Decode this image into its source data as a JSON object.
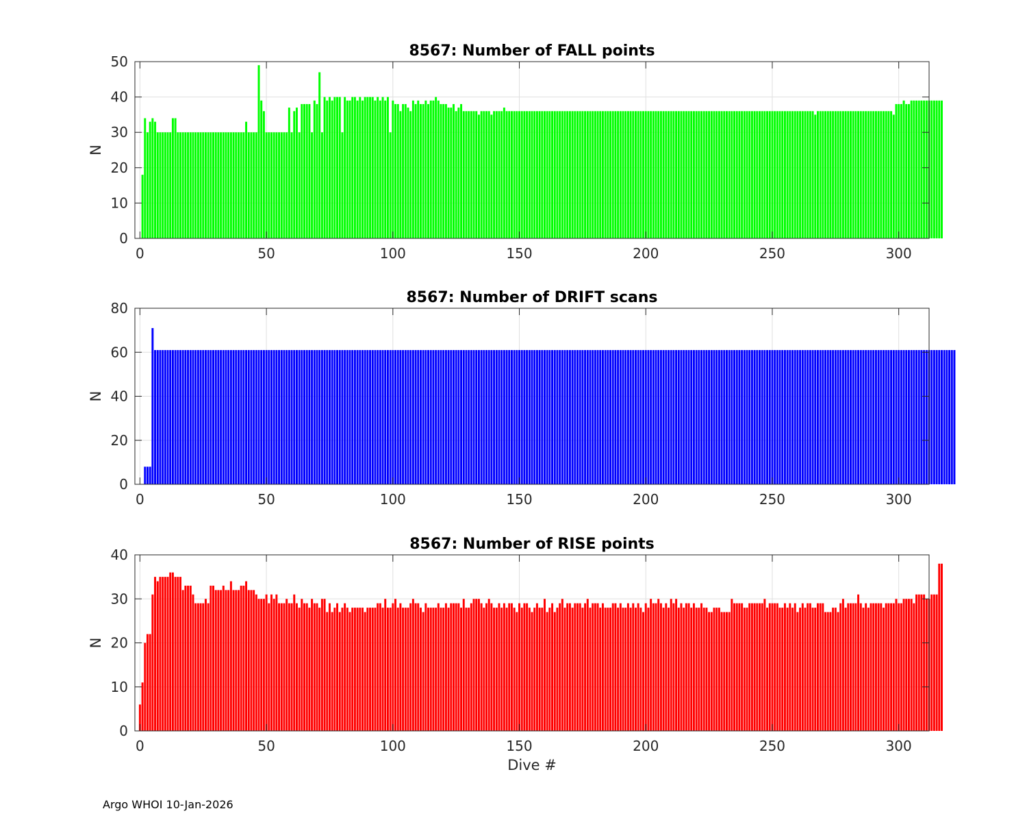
{
  "footer": {
    "note": "Argo WHOI 10-Jan-2026"
  },
  "chart_data": [
    {
      "type": "bar",
      "title": "8567: Number of FALL points",
      "xlabel": "",
      "ylabel": "N",
      "xlim": [
        -2,
        312
      ],
      "ylim": [
        0,
        50
      ],
      "xticks": [
        0,
        50,
        100,
        150,
        200,
        250,
        300
      ],
      "yticks": [
        0,
        10,
        20,
        30,
        40,
        50
      ],
      "grid": true,
      "color": "#00ff00",
      "x_start": 1,
      "values": [
        18,
        34,
        30,
        33,
        34,
        33,
        30,
        30,
        30,
        30,
        30,
        30,
        34,
        34,
        30,
        30,
        30,
        30,
        30,
        30,
        30,
        30,
        30,
        30,
        30,
        30,
        30,
        30,
        30,
        30,
        30,
        30,
        30,
        30,
        30,
        30,
        30,
        30,
        30,
        30,
        30,
        33,
        30,
        30,
        30,
        30,
        49,
        39,
        36,
        30,
        30,
        30,
        30,
        30,
        30,
        30,
        30,
        30,
        37,
        30,
        36,
        37,
        30,
        38,
        38,
        38,
        38,
        30,
        39,
        38,
        47,
        30,
        40,
        39,
        40,
        39,
        40,
        40,
        40,
        30,
        40,
        39,
        39,
        40,
        40,
        39,
        40,
        39,
        40,
        40,
        40,
        40,
        39,
        40,
        39,
        40,
        39,
        40,
        30,
        39,
        38,
        38,
        36,
        38,
        38,
        37,
        36,
        39,
        38,
        39,
        38,
        38,
        39,
        38,
        39,
        39,
        40,
        39,
        38,
        38,
        38,
        37,
        37,
        38,
        36,
        37,
        38,
        36,
        36,
        36,
        36,
        36,
        36,
        35,
        36,
        36,
        36,
        36,
        35,
        36,
        36,
        36,
        36,
        37,
        36,
        36,
        36,
        36,
        36,
        36,
        36,
        36,
        36,
        36,
        36,
        36,
        36,
        36,
        36,
        36,
        36,
        36,
        36,
        36,
        36,
        36,
        36,
        36,
        36,
        36,
        36,
        36,
        36,
        36,
        36,
        36,
        36,
        36,
        36,
        36,
        36,
        36,
        36,
        36,
        36,
        36,
        36,
        36,
        36,
        36,
        36,
        36,
        36,
        36,
        36,
        36,
        36,
        36,
        36,
        36,
        36,
        36,
        36,
        36,
        36,
        36,
        36,
        36,
        36,
        36,
        36,
        36,
        36,
        36,
        36,
        36,
        36,
        36,
        36,
        36,
        36,
        36,
        36,
        36,
        36,
        36,
        36,
        36,
        36,
        36,
        36,
        36,
        36,
        36,
        36,
        36,
        36,
        36,
        36,
        36,
        36,
        36,
        36,
        36,
        36,
        36,
        36,
        36,
        36,
        36,
        36,
        36,
        36,
        36,
        36,
        36,
        36,
        36,
        36,
        36,
        36,
        36,
        36,
        36,
        36,
        36,
        35,
        36,
        36,
        36,
        36,
        36,
        36,
        36,
        36,
        36,
        36,
        36,
        36,
        36,
        36,
        36,
        36,
        36,
        36,
        36,
        36,
        36,
        36,
        36,
        36,
        36,
        36,
        36,
        36,
        36,
        36,
        35,
        38,
        38,
        38,
        39,
        38,
        38,
        39,
        39,
        39,
        39,
        39,
        39,
        39,
        39,
        39,
        39,
        39,
        39,
        39
      ]
    },
    {
      "type": "bar",
      "title": "8567: Number of DRIFT scans",
      "xlabel": "",
      "ylabel": "N",
      "xlim": [
        -2,
        312
      ],
      "ylim": [
        0,
        80
      ],
      "xticks": [
        0,
        50,
        100,
        150,
        200,
        250,
        300
      ],
      "yticks": [
        0,
        20,
        40,
        60,
        80
      ],
      "grid": true,
      "color": "#0000ff",
      "x_start": 1,
      "values": [
        0,
        8,
        8,
        8,
        71,
        61,
        61,
        61,
        61,
        61,
        61,
        61,
        61,
        61,
        61,
        61,
        61,
        61,
        61,
        61,
        61,
        61,
        61,
        61,
        61,
        61,
        61,
        61,
        61,
        61,
        61,
        61,
        61,
        61,
        61,
        61,
        61,
        61,
        61,
        61,
        61,
        61,
        61,
        61,
        61,
        61,
        61,
        61,
        61,
        61,
        61,
        61,
        61,
        61,
        61,
        61,
        61,
        61,
        61,
        61,
        61,
        61,
        61,
        61,
        61,
        61,
        61,
        61,
        61,
        61,
        61,
        61,
        61,
        61,
        61,
        61,
        61,
        61,
        61,
        61,
        61,
        61,
        61,
        61,
        61,
        61,
        61,
        61,
        61,
        61,
        61,
        61,
        61,
        61,
        61,
        61,
        61,
        61,
        61,
        61,
        61,
        61,
        61,
        61,
        61,
        61,
        61,
        61,
        61,
        61,
        61,
        61,
        61,
        61,
        61,
        61,
        61,
        61,
        61,
        61,
        61,
        61,
        61,
        61,
        61,
        61,
        61,
        61,
        61,
        61,
        61,
        61,
        61,
        61,
        61,
        61,
        61,
        61,
        61,
        61,
        61,
        61,
        61,
        61,
        61,
        61,
        61,
        61,
        61,
        61,
        61,
        61,
        61,
        61,
        61,
        61,
        61,
        61,
        61,
        61,
        61,
        61,
        61,
        61,
        61,
        61,
        61,
        61,
        61,
        61,
        61,
        61,
        61,
        61,
        61,
        61,
        61,
        61,
        61,
        61,
        61,
        61,
        61,
        61,
        61,
        61,
        61,
        61,
        61,
        61,
        61,
        61,
        61,
        61,
        61,
        61,
        61,
        61,
        61,
        61,
        61,
        61,
        61,
        61,
        61,
        61,
        61,
        61,
        61,
        61,
        61,
        61,
        61,
        61,
        61,
        61,
        61,
        61,
        61,
        61,
        61,
        61,
        61,
        61,
        61,
        61,
        61,
        61,
        61,
        61,
        61,
        61,
        61,
        61,
        61,
        61,
        61,
        61,
        61,
        61,
        61,
        61,
        61,
        61,
        61,
        61,
        61,
        61,
        61,
        61,
        61,
        61,
        61,
        61,
        61,
        61,
        61,
        61,
        61,
        61,
        61,
        61,
        61,
        61,
        61,
        61,
        61,
        61,
        61,
        61,
        61,
        61,
        61,
        61,
        61,
        61,
        61,
        61,
        61,
        61,
        61,
        61,
        61,
        61,
        61,
        61,
        61,
        61,
        61,
        61,
        61,
        61,
        61,
        61,
        61,
        61,
        61,
        61,
        61,
        61,
        61,
        61,
        61,
        61,
        61,
        61,
        61,
        61,
        61,
        61,
        61,
        61,
        61,
        61,
        61,
        61,
        61,
        61,
        61,
        61,
        61,
        61
      ]
    },
    {
      "type": "bar",
      "title": "8567: Number of RISE points",
      "xlabel": "Dive #",
      "ylabel": "N",
      "xlim": [
        -2,
        312
      ],
      "ylim": [
        0,
        40
      ],
      "xticks": [
        0,
        50,
        100,
        150,
        200,
        250,
        300
      ],
      "yticks": [
        0,
        10,
        20,
        30,
        40
      ],
      "grid": true,
      "color": "#ff0000",
      "x_start": 0,
      "values": [
        6,
        11,
        20,
        22,
        22,
        31,
        35,
        34,
        35,
        35,
        35,
        35,
        36,
        36,
        35,
        35,
        35,
        32,
        33,
        33,
        33,
        31,
        29,
        29,
        29,
        29,
        30,
        29,
        33,
        33,
        32,
        32,
        32,
        33,
        32,
        32,
        34,
        32,
        32,
        32,
        33,
        33,
        34,
        32,
        32,
        32,
        31,
        30,
        30,
        30,
        31,
        29,
        31,
        30,
        31,
        29,
        29,
        29,
        30,
        29,
        29,
        31,
        29,
        28,
        30,
        29,
        29,
        28,
        30,
        29,
        29,
        28,
        30,
        30,
        27,
        29,
        27,
        28,
        29,
        27,
        28,
        29,
        28,
        27,
        28,
        28,
        28,
        28,
        28,
        27,
        28,
        28,
        28,
        28,
        29,
        29,
        28,
        30,
        28,
        28,
        29,
        30,
        28,
        29,
        28,
        28,
        28,
        29,
        30,
        29,
        29,
        28,
        27,
        29,
        28,
        28,
        28,
        28,
        29,
        28,
        28,
        29,
        28,
        29,
        29,
        29,
        29,
        28,
        30,
        28,
        28,
        29,
        30,
        30,
        30,
        29,
        28,
        29,
        30,
        29,
        28,
        28,
        29,
        28,
        29,
        28,
        29,
        29,
        28,
        27,
        29,
        28,
        29,
        29,
        28,
        27,
        28,
        29,
        28,
        28,
        30,
        27,
        28,
        29,
        27,
        28,
        29,
        30,
        28,
        29,
        29,
        28,
        29,
        29,
        29,
        28,
        29,
        30,
        28,
        29,
        29,
        29,
        28,
        29,
        28,
        28,
        28,
        29,
        29,
        28,
        29,
        28,
        28,
        29,
        28,
        29,
        28,
        29,
        28,
        27,
        29,
        28,
        30,
        29,
        29,
        30,
        29,
        28,
        29,
        28,
        30,
        29,
        30,
        28,
        29,
        28,
        29,
        29,
        28,
        29,
        28,
        28,
        29,
        28,
        28,
        27,
        27,
        28,
        28,
        28,
        27,
        27,
        27,
        27,
        30,
        29,
        29,
        29,
        29,
        28,
        28,
        29,
        29,
        29,
        29,
        29,
        29,
        30,
        28,
        29,
        29,
        29,
        29,
        28,
        28,
        29,
        28,
        29,
        28,
        29,
        27,
        28,
        29,
        28,
        29,
        29,
        28,
        28,
        29,
        29,
        29,
        27,
        27,
        27,
        28,
        28,
        27,
        29,
        30,
        28,
        29,
        29,
        29,
        29,
        31,
        29,
        28,
        29,
        28,
        29,
        29,
        29,
        29,
        29,
        28,
        29,
        29,
        29,
        29,
        30,
        29,
        29,
        30,
        30,
        30,
        30,
        29,
        31,
        31,
        31,
        31,
        30,
        30,
        31,
        31,
        31,
        38,
        38
      ]
    }
  ]
}
